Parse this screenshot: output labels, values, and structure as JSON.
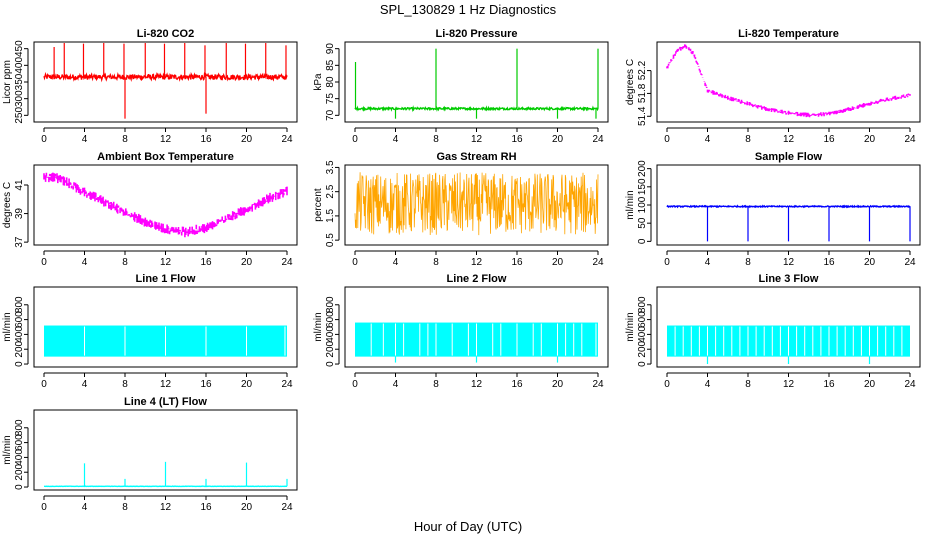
{
  "title": "SPL_130829  1 Hz Diagnostics",
  "xlabel": "Hour of Day (UTC)",
  "colors": {
    "red": "#ff0000",
    "green": "#00cc00",
    "magenta": "#ff00ff",
    "orange": "#ffa500",
    "blue": "#0000ff",
    "cyan": "#00ffff"
  },
  "chart_data": [
    {
      "type": "line",
      "title": "Li-820 CO2",
      "ylabel": "Licor ppm",
      "color": "red",
      "render": "spiky",
      "xlim": [
        0,
        24
      ],
      "ylim": [
        230,
        470
      ],
      "xticks": [
        0,
        4,
        8,
        12,
        16,
        20,
        24
      ],
      "yticks": [
        250,
        300,
        350,
        400,
        450
      ],
      "baseline": 365,
      "jitter": 8,
      "spikes": [
        [
          1.0,
          455
        ],
        [
          2.0,
          470
        ],
        [
          3.9,
          465
        ],
        [
          5.9,
          470
        ],
        [
          7.9,
          465
        ],
        [
          8.0,
          240
        ],
        [
          10.0,
          470
        ],
        [
          11.9,
          465
        ],
        [
          13.9,
          470
        ],
        [
          15.9,
          460
        ],
        [
          16.0,
          255
        ],
        [
          18.0,
          470
        ],
        [
          19.9,
          465
        ],
        [
          21.9,
          470
        ],
        [
          23.9,
          460
        ]
      ]
    },
    {
      "type": "line",
      "title": "Li-820 Pressure",
      "ylabel": "kPa",
      "color": "green",
      "render": "spiky",
      "xlim": [
        0,
        24
      ],
      "ylim": [
        68,
        92
      ],
      "xticks": [
        0,
        4,
        8,
        12,
        16,
        20,
        24
      ],
      "yticks": [
        70,
        75,
        80,
        85,
        90
      ],
      "baseline": 72,
      "jitter": 0.3,
      "spikes": [
        [
          0.05,
          86
        ],
        [
          4.0,
          69
        ],
        [
          8.0,
          90
        ],
        [
          12.0,
          69
        ],
        [
          16.0,
          90
        ],
        [
          20.0,
          69
        ],
        [
          23.8,
          69
        ],
        [
          24.0,
          90
        ]
      ]
    },
    {
      "type": "line",
      "title": "Li-820 Temperature",
      "ylabel": "degrees C",
      "color": "magenta",
      "render": "band",
      "xlim": [
        0,
        24
      ],
      "ylim": [
        51.3,
        52.7
      ],
      "xticks": [
        0,
        4,
        8,
        12,
        16,
        20,
        24
      ],
      "yticks": [
        51.4,
        51.8,
        52.2
      ],
      "band": 0.05,
      "curve": [
        [
          0,
          52.25
        ],
        [
          1,
          52.55
        ],
        [
          1.8,
          52.63
        ],
        [
          2.6,
          52.5
        ],
        [
          3.5,
          52.1
        ],
        [
          4,
          51.85
        ],
        [
          6,
          51.72
        ],
        [
          8,
          51.62
        ],
        [
          10,
          51.52
        ],
        [
          12,
          51.46
        ],
        [
          14,
          51.42
        ],
        [
          16,
          51.44
        ],
        [
          18,
          51.52
        ],
        [
          20,
          51.62
        ],
        [
          22,
          51.7
        ],
        [
          24,
          51.77
        ]
      ]
    },
    {
      "type": "line",
      "title": "Ambient Box Temperature",
      "ylabel": "degrees C",
      "color": "magenta",
      "render": "band",
      "xlim": [
        0,
        24
      ],
      "ylim": [
        36.8,
        42.4
      ],
      "xticks": [
        0,
        4,
        8,
        12,
        16,
        20,
        24
      ],
      "yticks": [
        37,
        39,
        41
      ],
      "band": 0.45,
      "curve": [
        [
          0,
          41.5
        ],
        [
          1,
          41.6
        ],
        [
          2,
          41.3
        ],
        [
          4,
          40.5
        ],
        [
          6,
          39.8
        ],
        [
          8,
          39.1
        ],
        [
          10,
          38.4
        ],
        [
          12,
          37.9
        ],
        [
          14,
          37.7
        ],
        [
          16,
          38.0
        ],
        [
          18,
          38.6
        ],
        [
          20,
          39.3
        ],
        [
          22,
          40.0
        ],
        [
          24,
          40.6
        ]
      ]
    },
    {
      "type": "line",
      "title": "Gas Stream RH",
      "ylabel": "percent",
      "color": "orange",
      "render": "noise",
      "xlim": [
        0,
        24
      ],
      "ylim": [
        0.3,
        3.6
      ],
      "xticks": [
        0,
        4,
        8,
        12,
        16,
        20,
        24
      ],
      "yticks": [
        0.5,
        1.5,
        2.5,
        3.5
      ],
      "center": 2.0,
      "amp": 1.3
    },
    {
      "type": "line",
      "title": "Sample Flow",
      "ylabel": "ml/min",
      "color": "blue",
      "render": "spiky",
      "xlim": [
        0,
        24
      ],
      "ylim": [
        -10,
        210
      ],
      "xticks": [
        0,
        4,
        8,
        12,
        16,
        20,
        24
      ],
      "yticks": [
        0,
        50,
        100,
        150,
        200
      ],
      "baseline": 96,
      "jitter": 1.5,
      "spikes": [
        [
          4.0,
          0
        ],
        [
          8.0,
          0
        ],
        [
          12.0,
          0
        ],
        [
          16.0,
          0
        ],
        [
          20.0,
          0
        ],
        [
          24.0,
          0
        ]
      ]
    },
    {
      "type": "line",
      "title": "Line 1 Flow",
      "ylabel": "ml/min",
      "color": "cyan",
      "render": "fill",
      "xlim": [
        0,
        24
      ],
      "ylim": [
        -40,
        1040
      ],
      "xticks": [
        0,
        4,
        8,
        12,
        16,
        20,
        24
      ],
      "yticks": [
        0,
        200,
        400,
        600,
        800
      ],
      "low": 100,
      "high": 520,
      "gaps": [
        4,
        8,
        12,
        16,
        20,
        23.8
      ],
      "dips": []
    },
    {
      "type": "line",
      "title": "Line 2 Flow",
      "ylabel": "ml/min",
      "color": "cyan",
      "render": "fill",
      "xlim": [
        0,
        24
      ],
      "ylim": [
        -40,
        1040
      ],
      "xticks": [
        0,
        4,
        8,
        12,
        16,
        20,
        24
      ],
      "yticks": [
        0,
        200,
        400,
        600,
        800
      ],
      "low": 100,
      "high": 560,
      "gaps": [
        1.6,
        2.8,
        4,
        4.8,
        6.4,
        7.2,
        8,
        9.6,
        11.2,
        12,
        13.6,
        14.4,
        16,
        17.6,
        18.4,
        20,
        20.8,
        21.6,
        22.4,
        23.8
      ],
      "dips": [
        [
          4,
          20
        ],
        [
          12,
          20
        ],
        [
          20,
          20
        ]
      ]
    },
    {
      "type": "line",
      "title": "Line 3 Flow",
      "ylabel": "ml/min",
      "color": "cyan",
      "render": "fill",
      "xlim": [
        0,
        24
      ],
      "ylim": [
        -40,
        1040
      ],
      "xticks": [
        0,
        4,
        8,
        12,
        16,
        20,
        24
      ],
      "yticks": [
        0,
        200,
        400,
        600,
        800
      ],
      "low": 100,
      "high": 520,
      "gaps": [
        0.8,
        1.6,
        2.4,
        3.2,
        4,
        4.8,
        5.6,
        6.4,
        7.2,
        8,
        8.8,
        9.6,
        10.4,
        11.2,
        12,
        12.8,
        13.6,
        14.4,
        15.2,
        16,
        16.8,
        17.6,
        18.4,
        19.2,
        20,
        20.8,
        21.6,
        22.4,
        23.2
      ],
      "dips": [
        [
          4,
          0
        ],
        [
          12,
          0
        ],
        [
          20,
          0
        ]
      ]
    },
    {
      "type": "line",
      "title": "Line 4 (LT) Flow",
      "ylabel": "ml/min",
      "color": "cyan",
      "render": "spiky",
      "xlim": [
        0,
        24
      ],
      "ylim": [
        -40,
        1040
      ],
      "xticks": [
        0,
        4,
        8,
        12,
        16,
        20,
        24
      ],
      "yticks": [
        0,
        200,
        400,
        600,
        800
      ],
      "baseline": 10,
      "jitter": 2,
      "spikes": [
        [
          4.0,
          320
        ],
        [
          8.0,
          110
        ],
        [
          12.0,
          340
        ],
        [
          16.0,
          110
        ],
        [
          20.0,
          330
        ],
        [
          24.0,
          110
        ]
      ]
    }
  ]
}
